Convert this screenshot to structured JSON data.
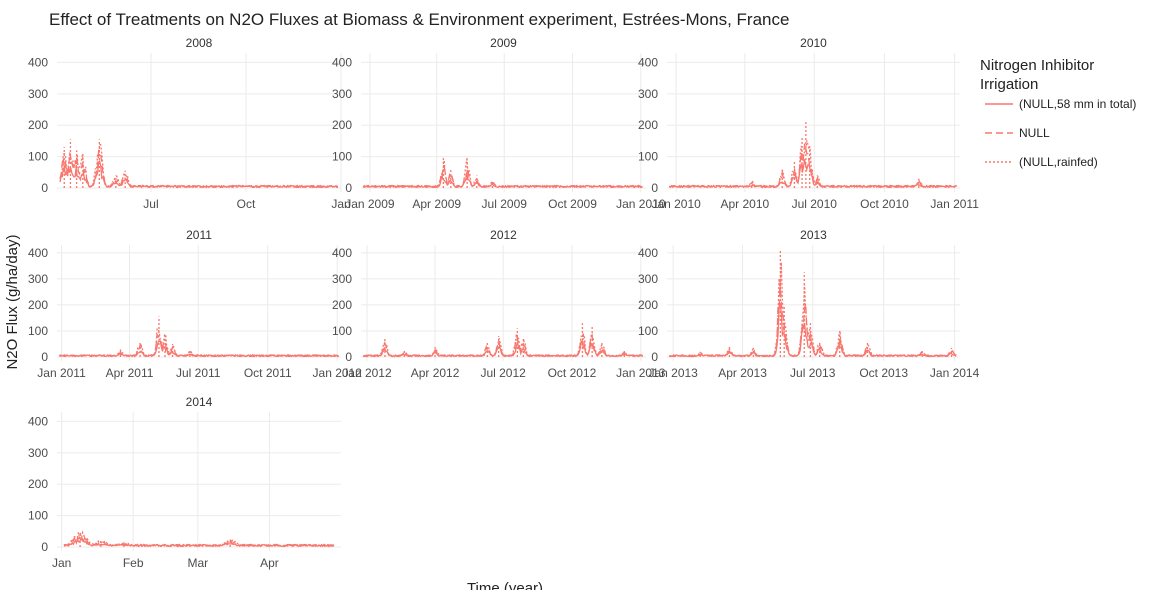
{
  "chart_data": {
    "type": "line",
    "title": "Effect of Treatments on N2O Fluxes at Biomass & Environment experiment, Estrées-Mons, France",
    "xlabel": "Time (year)",
    "ylabel": "N2O Flux (g/ha/day)",
    "ylim": [
      0,
      430
    ],
    "y_ticks": [
      0,
      100,
      200,
      300,
      400
    ],
    "grid": true,
    "legend": {
      "title_lines": [
        "Nitrogen Inhibitor",
        "Irrigation"
      ],
      "placement": "right",
      "entries": [
        {
          "label": "(NULL,58 mm in total)",
          "dash": "solid"
        },
        {
          "label": "NULL",
          "dash": "dashed"
        },
        {
          "label": "(NULL,rainfed)",
          "dash": "dotted"
        }
      ]
    },
    "series_color": "#f8766d",
    "panels": [
      {
        "label": "2008",
        "xrange": [
          "2008-04-01",
          "2009-01-01"
        ],
        "x_ticks": [
          {
            "date": "2008-07-01",
            "label": "Jul"
          },
          {
            "date": "2008-10-01",
            "label": "Oct"
          },
          {
            "date": "2009-01-01",
            "label": "Jan"
          }
        ],
        "peaks": [
          {
            "date": "2008-04-08",
            "value": 130
          },
          {
            "date": "2008-04-14",
            "value": 155
          },
          {
            "date": "2008-04-20",
            "value": 120
          },
          {
            "date": "2008-04-26",
            "value": 110
          },
          {
            "date": "2008-05-12",
            "value": 155
          },
          {
            "date": "2008-05-28",
            "value": 40
          },
          {
            "date": "2008-06-06",
            "value": 55
          }
        ]
      },
      {
        "label": "2009",
        "xrange": [
          "2008-12-20",
          "2010-01-08"
        ],
        "x_ticks": [
          {
            "date": "2009-01-01",
            "label": "Jan 2009"
          },
          {
            "date": "2009-04-01",
            "label": "Apr 2009"
          },
          {
            "date": "2009-07-01",
            "label": "Jul 2009"
          },
          {
            "date": "2009-10-01",
            "label": "Oct 2009"
          },
          {
            "date": "2010-01-01",
            "label": "Jan 2010"
          }
        ],
        "peaks": [
          {
            "date": "2009-04-10",
            "value": 95
          },
          {
            "date": "2009-04-20",
            "value": 60
          },
          {
            "date": "2009-05-12",
            "value": 95
          },
          {
            "date": "2009-05-25",
            "value": 40
          },
          {
            "date": "2009-06-15",
            "value": 25
          }
        ]
      },
      {
        "label": "2010",
        "xrange": [
          "2009-12-20",
          "2011-01-08"
        ],
        "x_ticks": [
          {
            "date": "2010-01-01",
            "label": "Jan 2010"
          },
          {
            "date": "2010-04-01",
            "label": "Apr 2010"
          },
          {
            "date": "2010-07-01",
            "label": "Jul 2010"
          },
          {
            "date": "2010-10-01",
            "label": "Oct 2010"
          },
          {
            "date": "2011-01-01",
            "label": "Jan 2011"
          }
        ],
        "peaks": [
          {
            "date": "2010-04-10",
            "value": 25
          },
          {
            "date": "2010-05-20",
            "value": 60
          },
          {
            "date": "2010-06-05",
            "value": 85
          },
          {
            "date": "2010-06-15",
            "value": 160
          },
          {
            "date": "2010-06-20",
            "value": 210
          },
          {
            "date": "2010-06-25",
            "value": 140
          },
          {
            "date": "2010-07-05",
            "value": 40
          },
          {
            "date": "2010-11-15",
            "value": 30
          }
        ]
      },
      {
        "label": "2011",
        "xrange": [
          "2010-12-26",
          "2012-01-06"
        ],
        "x_ticks": [
          {
            "date": "2011-01-01",
            "label": "Jan 2011"
          },
          {
            "date": "2011-04-01",
            "label": "Apr 2011"
          },
          {
            "date": "2011-07-01",
            "label": "Jul 2011"
          },
          {
            "date": "2011-10-01",
            "label": "Oct 2011"
          },
          {
            "date": "2012-01-01",
            "label": "Jan 2012"
          }
        ],
        "peaks": [
          {
            "date": "2011-03-20",
            "value": 30
          },
          {
            "date": "2011-04-15",
            "value": 60
          },
          {
            "date": "2011-05-10",
            "value": 155
          },
          {
            "date": "2011-05-18",
            "value": 90
          },
          {
            "date": "2011-05-28",
            "value": 50
          },
          {
            "date": "2011-06-20",
            "value": 25
          }
        ]
      },
      {
        "label": "2012",
        "xrange": [
          "2011-12-24",
          "2013-01-08"
        ],
        "x_ticks": [
          {
            "date": "2012-01-01",
            "label": "Jan 2012"
          },
          {
            "date": "2012-04-01",
            "label": "Apr 2012"
          },
          {
            "date": "2012-07-01",
            "label": "Jul 2012"
          },
          {
            "date": "2012-10-01",
            "label": "Oct 2012"
          },
          {
            "date": "2013-01-01",
            "label": "Jan 2013"
          }
        ],
        "peaks": [
          {
            "date": "2012-01-25",
            "value": 70
          },
          {
            "date": "2012-02-20",
            "value": 25
          },
          {
            "date": "2012-04-01",
            "value": 40
          },
          {
            "date": "2012-06-10",
            "value": 60
          },
          {
            "date": "2012-06-25",
            "value": 80
          },
          {
            "date": "2012-07-20",
            "value": 110
          },
          {
            "date": "2012-07-28",
            "value": 70
          },
          {
            "date": "2012-10-15",
            "value": 130
          },
          {
            "date": "2012-10-28",
            "value": 115
          },
          {
            "date": "2012-11-10",
            "value": 60
          },
          {
            "date": "2012-12-10",
            "value": 25
          }
        ]
      },
      {
        "label": "2013",
        "xrange": [
          "2012-12-24",
          "2014-01-08"
        ],
        "x_ticks": [
          {
            "date": "2013-01-01",
            "label": "Jan 2013"
          },
          {
            "date": "2013-04-01",
            "label": "Apr 2013"
          },
          {
            "date": "2013-07-01",
            "label": "Jul 2013"
          },
          {
            "date": "2013-10-01",
            "label": "Oct 2013"
          },
          {
            "date": "2014-01-01",
            "label": "Jan 2014"
          }
        ],
        "peaks": [
          {
            "date": "2013-02-05",
            "value": 20
          },
          {
            "date": "2013-03-15",
            "value": 40
          },
          {
            "date": "2013-04-15",
            "value": 35
          },
          {
            "date": "2013-05-20",
            "value": 410
          },
          {
            "date": "2013-05-25",
            "value": 200
          },
          {
            "date": "2013-06-20",
            "value": 325
          },
          {
            "date": "2013-06-28",
            "value": 130
          },
          {
            "date": "2013-07-10",
            "value": 60
          },
          {
            "date": "2013-08-05",
            "value": 100
          },
          {
            "date": "2013-09-10",
            "value": 55
          },
          {
            "date": "2013-11-20",
            "value": 25
          },
          {
            "date": "2013-12-28",
            "value": 35
          }
        ]
      },
      {
        "label": "2014",
        "xrange": [
          "2013-12-30",
          "2014-05-02"
        ],
        "x_ticks": [
          {
            "date": "2014-01-01",
            "label": "Jan"
          },
          {
            "date": "2014-02-01",
            "label": "Feb"
          },
          {
            "date": "2014-03-01",
            "label": "Mar"
          },
          {
            "date": "2014-04-01",
            "label": "Apr"
          }
        ],
        "peaks": [
          {
            "date": "2014-01-09",
            "value": 50
          },
          {
            "date": "2014-01-18",
            "value": 20
          },
          {
            "date": "2014-01-28",
            "value": 15
          },
          {
            "date": "2014-03-15",
            "value": 25
          }
        ]
      }
    ]
  }
}
